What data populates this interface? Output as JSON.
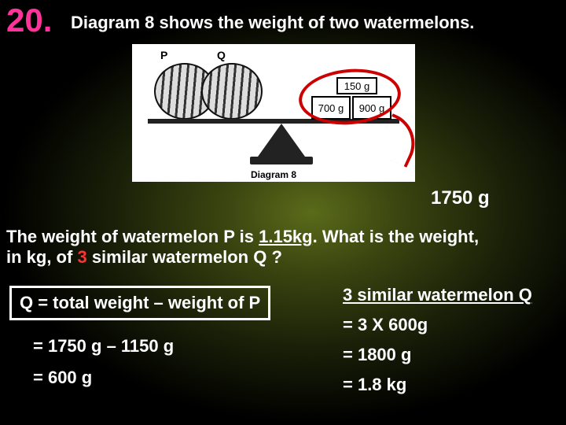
{
  "question_number": "20.",
  "intro_text": "Diagram 8 shows the weight of two watermelons.",
  "diagram": {
    "caption": "Diagram 8",
    "melon_labels": {
      "p": "P",
      "q": "Q"
    },
    "weight_boxes": {
      "top": "150 g",
      "left": "700 g",
      "right": "900 g"
    },
    "annotation_color": "#cc0000",
    "total_weight_label": "1750 g"
  },
  "question": {
    "line1_a": "The weight of watermelon P is ",
    "line1_b": "1.15kg",
    "line1_c": ". What is the weight,",
    "line2_a": "in kg, of ",
    "line2_b": "3",
    "line2_c": " similar watermelon Q ?"
  },
  "solution_left": {
    "box": "Q = total weight – weight of P",
    "step1": "= 1750 g – 1150 g",
    "step2": "= 600 g"
  },
  "solution_right": {
    "header": "3 similar watermelon Q",
    "step1": "= 3 X 600g",
    "step2": "= 1800 g",
    "step3": "= 1.8 kg"
  },
  "colors": {
    "number_color": "#ff3399",
    "highlight_red": "#ff3333",
    "text_white": "#ffffff",
    "bg_dark": "#000000"
  },
  "fonts": {
    "body_family": "Comic Sans MS",
    "number_size_pt": 32,
    "intro_size_pt": 16,
    "solution_family": "Arial",
    "solution_size_pt": 16
  }
}
